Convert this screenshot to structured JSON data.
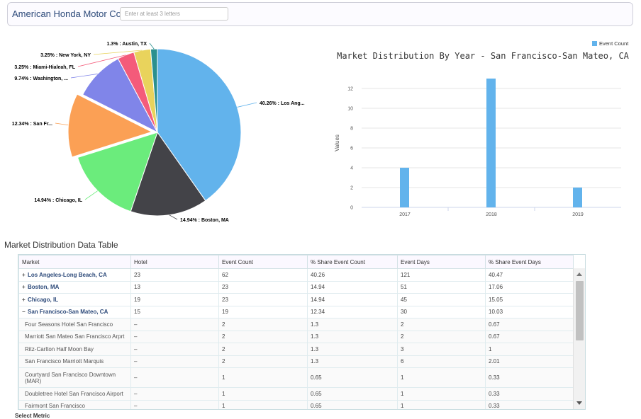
{
  "header": {
    "company": "American Honda Motor Co.",
    "search_placeholder": "Enter at least 3 letters"
  },
  "chart_data": [
    {
      "type": "pie",
      "slices": [
        {
          "label": "40.26% : Los Ang...",
          "value": 40.26,
          "color": "#62b3ec"
        },
        {
          "label": "14.94% : Boston, MA",
          "value": 14.94,
          "color": "#434348"
        },
        {
          "label": "14.94% : Chicago, IL",
          "value": 14.94,
          "color": "#6bec7c"
        },
        {
          "label": "12.34% : San Fr...",
          "value": 12.34,
          "color": "#fba055",
          "sliced": true
        },
        {
          "label": "9.74% : Washington, ...",
          "value": 9.74,
          "color": "#8085e9"
        },
        {
          "label": "3.25% : Miami-Hialeah, FL",
          "value": 3.25,
          "color": "#f45b7a"
        },
        {
          "label": "3.25% : New York, NY",
          "value": 3.25,
          "color": "#e9d35c"
        },
        {
          "label": "1.3% : Austin, TX",
          "value": 1.3,
          "color": "#2b908f"
        }
      ]
    },
    {
      "type": "bar",
      "title": "Market Distribution By Year - San Francisco-San Mateo, CA",
      "categories": [
        "2017",
        "2018",
        "2019"
      ],
      "series": [
        {
          "name": "Event Count",
          "values": [
            4,
            13,
            2
          ],
          "color": "#62b3ec"
        }
      ],
      "ylabel": "Values",
      "ylim": [
        0,
        14
      ],
      "yticks": [
        "0",
        "2",
        "4",
        "6",
        "8",
        "10",
        "12"
      ],
      "legend": "top-right",
      "grid": true
    }
  ],
  "table": {
    "title": "Market Distribution Data Table",
    "columns": [
      "Market",
      "Hotel",
      "Event Count",
      "% Share Event Count",
      "Event Days",
      "% Share Event Days"
    ],
    "rows": [
      {
        "kind": "group",
        "sign": "+",
        "cells": [
          "Los Angeles-Long Beach, CA",
          "23",
          "62",
          "40.26",
          "121",
          "40.47"
        ]
      },
      {
        "kind": "group",
        "sign": "+",
        "cells": [
          "Boston, MA",
          "13",
          "23",
          "14.94",
          "51",
          "17.06"
        ]
      },
      {
        "kind": "group",
        "sign": "+",
        "cells": [
          "Chicago, IL",
          "19",
          "23",
          "14.94",
          "45",
          "15.05"
        ]
      },
      {
        "kind": "group",
        "sign": "−",
        "cells": [
          "San Francisco-San Mateo, CA",
          "15",
          "19",
          "12.34",
          "30",
          "10.03"
        ]
      },
      {
        "kind": "sub",
        "cells": [
          "Four Seasons Hotel San Francisco",
          "–",
          "2",
          "1.3",
          "2",
          "0.67"
        ]
      },
      {
        "kind": "sub",
        "cells": [
          "Marriott San Mateo San Francisco Arprt",
          "–",
          "2",
          "1.3",
          "2",
          "0.67"
        ]
      },
      {
        "kind": "sub",
        "cells": [
          "Ritz-Carlton Half Moon Bay",
          "–",
          "2",
          "1.3",
          "3",
          "1"
        ]
      },
      {
        "kind": "sub",
        "cells": [
          "San Francisco Marriott Marquis",
          "–",
          "2",
          "1.3",
          "6",
          "2.01"
        ]
      },
      {
        "kind": "sub",
        "tall": true,
        "cells": [
          "Courtyard San Francisco Downtown (MAR)",
          "–",
          "1",
          "0.65",
          "1",
          "0.33"
        ]
      },
      {
        "kind": "sub",
        "cells": [
          "Doubletree Hotel San Francisco Airport",
          "–",
          "1",
          "0.65",
          "1",
          "0.33"
        ]
      },
      {
        "kind": "sub",
        "cells": [
          "Fairmont San Francisco",
          "–",
          "1",
          "0.65",
          "1",
          "0.33"
        ]
      }
    ]
  },
  "footer": {
    "select_metric": "Select Metric"
  }
}
